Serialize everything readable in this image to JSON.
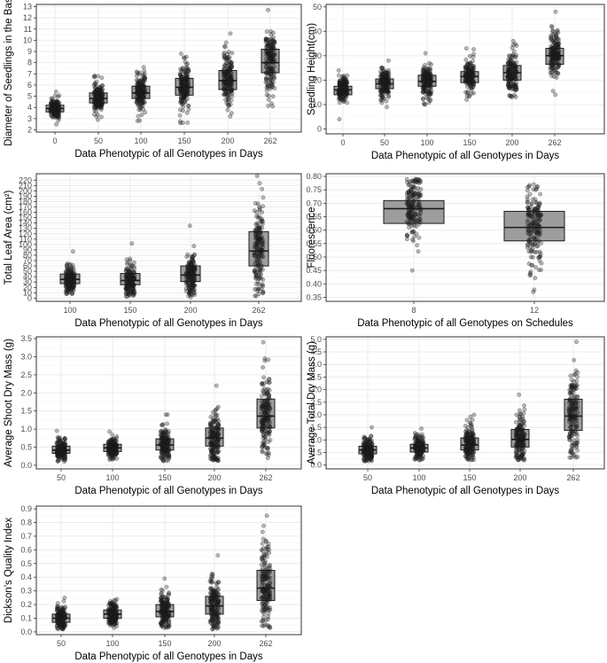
{
  "chart_data": [
    {
      "type": "boxplot-jitter",
      "xlabel": "Data Phenotypic of all Genotypes in Days",
      "ylabel": "Diameter of Seedlings in the Basis",
      "categories": [
        "0",
        "50",
        "100",
        "150",
        "200",
        "262"
      ],
      "yticks": [
        2,
        3,
        4,
        5,
        6,
        7,
        8,
        9,
        10,
        11,
        12,
        13
      ],
      "ylim": [
        1.8,
        13.2
      ],
      "boxes": [
        {
          "q1": 3.6,
          "median": 3.9,
          "q3": 4.2,
          "min": 2.5,
          "max": 5.4
        },
        {
          "q1": 4.4,
          "median": 4.8,
          "q3": 5.3,
          "min": 2.9,
          "max": 6.8
        },
        {
          "q1": 4.8,
          "median": 5.3,
          "q3": 5.9,
          "min": 2.8,
          "max": 7.6
        },
        {
          "q1": 5.1,
          "median": 5.8,
          "q3": 6.6,
          "min": 2.6,
          "max": 8.8
        },
        {
          "q1": 5.6,
          "median": 6.4,
          "q3": 7.3,
          "min": 3.2,
          "max": 10.6
        },
        {
          "q1": 7.1,
          "median": 8.0,
          "q3": 9.2,
          "min": 4.1,
          "max": 12.7
        }
      ]
    },
    {
      "type": "boxplot-jitter",
      "xlabel": "Data Phenotypic of all Genotypes in Days",
      "ylabel": "Seedling Height(cm)",
      "categories": [
        "0",
        "50",
        "100",
        "150",
        "200",
        "262"
      ],
      "yticks": [
        0,
        10,
        20,
        30,
        40,
        50
      ],
      "ylim": [
        -2,
        51
      ],
      "boxes": [
        {
          "q1": 14,
          "median": 16,
          "q3": 17.5,
          "min": 4,
          "max": 24
        },
        {
          "q1": 16.5,
          "median": 18.5,
          "q3": 20.5,
          "min": 9,
          "max": 28
        },
        {
          "q1": 17.5,
          "median": 19.5,
          "q3": 22,
          "min": 10,
          "max": 31
        },
        {
          "q1": 19,
          "median": 21.5,
          "q3": 23.5,
          "min": 12,
          "max": 33
        },
        {
          "q1": 20,
          "median": 23,
          "q3": 26,
          "min": 13,
          "max": 36
        },
        {
          "q1": 26.5,
          "median": 30,
          "q3": 33,
          "min": 14,
          "max": 48
        }
      ]
    },
    {
      "type": "boxplot-jitter",
      "xlabel": "Data Phenotypic of all Genotypes in Days",
      "ylabel": "Total Leaf Area (cm²)",
      "categories": [
        "100",
        "150",
        "200",
        "262"
      ],
      "yticks": [
        0,
        10,
        20,
        30,
        40,
        50,
        60,
        70,
        80,
        90,
        100,
        110,
        120,
        130,
        140,
        150,
        160,
        170,
        180,
        190,
        200,
        210,
        220
      ],
      "ylim": [
        -6,
        232
      ],
      "boxes": [
        {
          "q1": 27,
          "median": 35,
          "q3": 45,
          "min": 8,
          "max": 87
        },
        {
          "q1": 25,
          "median": 33,
          "q3": 46,
          "min": 3,
          "max": 102
        },
        {
          "q1": 31,
          "median": 43,
          "q3": 60,
          "min": 2,
          "max": 135
        },
        {
          "q1": 60,
          "median": 88,
          "q3": 124,
          "min": 4,
          "max": 228
        }
      ]
    },
    {
      "type": "boxplot-jitter",
      "xlabel": "Data Phenotypic of all Genotypes on Schedules",
      "ylabel": "Fluorescence",
      "categories": [
        "8",
        "12"
      ],
      "yticks": [
        0.35,
        0.4,
        0.45,
        0.5,
        0.55,
        0.6,
        0.65,
        0.7,
        0.75,
        0.8
      ],
      "ylim": [
        0.335,
        0.81
      ],
      "boxes": [
        {
          "q1": 0.625,
          "median": 0.68,
          "q3": 0.71,
          "min": 0.45,
          "max": 0.79
        },
        {
          "q1": 0.56,
          "median": 0.61,
          "q3": 0.67,
          "min": 0.37,
          "max": 0.77
        }
      ]
    },
    {
      "type": "boxplot-jitter",
      "xlabel": "Data Phenotypic of all Genotypes in Days",
      "ylabel": "Average Shoot Dry Mass (g)",
      "categories": [
        "50",
        "100",
        "150",
        "200",
        "262"
      ],
      "yticks": [
        0.0,
        0.5,
        1.0,
        1.5,
        2.0,
        2.5,
        3.0,
        3.5
      ],
      "ylim": [
        -0.1,
        3.55
      ],
      "boxes": [
        {
          "q1": 0.33,
          "median": 0.42,
          "q3": 0.53,
          "min": 0.1,
          "max": 0.95
        },
        {
          "q1": 0.38,
          "median": 0.48,
          "q3": 0.58,
          "min": 0.15,
          "max": 0.93
        },
        {
          "q1": 0.42,
          "median": 0.56,
          "q3": 0.73,
          "min": 0.12,
          "max": 1.4
        },
        {
          "q1": 0.53,
          "median": 0.75,
          "q3": 1.03,
          "min": 0.12,
          "max": 2.2
        },
        {
          "q1": 1.03,
          "median": 1.36,
          "q3": 1.83,
          "min": 0.2,
          "max": 3.4
        }
      ]
    },
    {
      "type": "boxplot-jitter",
      "xlabel": "Data Phenotypic of all Genotypes in Days",
      "ylabel": "Average Total Dry Mass (g)",
      "categories": [
        "50",
        "100",
        "150",
        "200",
        "262"
      ],
      "yticks": [
        0.0,
        0.5,
        1.0,
        1.5,
        2.0,
        2.5,
        3.0,
        3.5,
        4.0,
        4.5,
        5.0
      ],
      "ylim": [
        -0.15,
        5.1
      ],
      "boxes": [
        {
          "q1": 0.45,
          "median": 0.6,
          "q3": 0.75,
          "min": 0.15,
          "max": 1.5
        },
        {
          "q1": 0.52,
          "median": 0.68,
          "q3": 0.83,
          "min": 0.2,
          "max": 1.45
        },
        {
          "q1": 0.6,
          "median": 0.8,
          "q3": 1.08,
          "min": 0.2,
          "max": 2.0
        },
        {
          "q1": 0.72,
          "median": 1.02,
          "q3": 1.42,
          "min": 0.2,
          "max": 2.8
        },
        {
          "q1": 1.38,
          "median": 1.95,
          "q3": 2.62,
          "min": 0.3,
          "max": 4.9
        }
      ]
    },
    {
      "type": "boxplot-jitter",
      "xlabel": "Data Phenotypic of all Genotypes in Days",
      "ylabel": "Dickson's Quality Index",
      "categories": [
        "50",
        "100",
        "150",
        "200",
        "262"
      ],
      "yticks": [
        0.0,
        0.1,
        0.2,
        0.3,
        0.4,
        0.5,
        0.6,
        0.7,
        0.8,
        0.9
      ],
      "ylim": [
        -0.02,
        0.92
      ],
      "boxes": [
        {
          "q1": 0.07,
          "median": 0.1,
          "q3": 0.13,
          "min": 0.02,
          "max": 0.25
        },
        {
          "q1": 0.1,
          "median": 0.13,
          "q3": 0.16,
          "min": 0.03,
          "max": 0.24
        },
        {
          "q1": 0.11,
          "median": 0.15,
          "q3": 0.2,
          "min": 0.03,
          "max": 0.39
        },
        {
          "q1": 0.13,
          "median": 0.19,
          "q3": 0.26,
          "min": 0.02,
          "max": 0.56
        },
        {
          "q1": 0.23,
          "median": 0.32,
          "q3": 0.45,
          "min": 0.03,
          "max": 0.85
        }
      ]
    }
  ]
}
